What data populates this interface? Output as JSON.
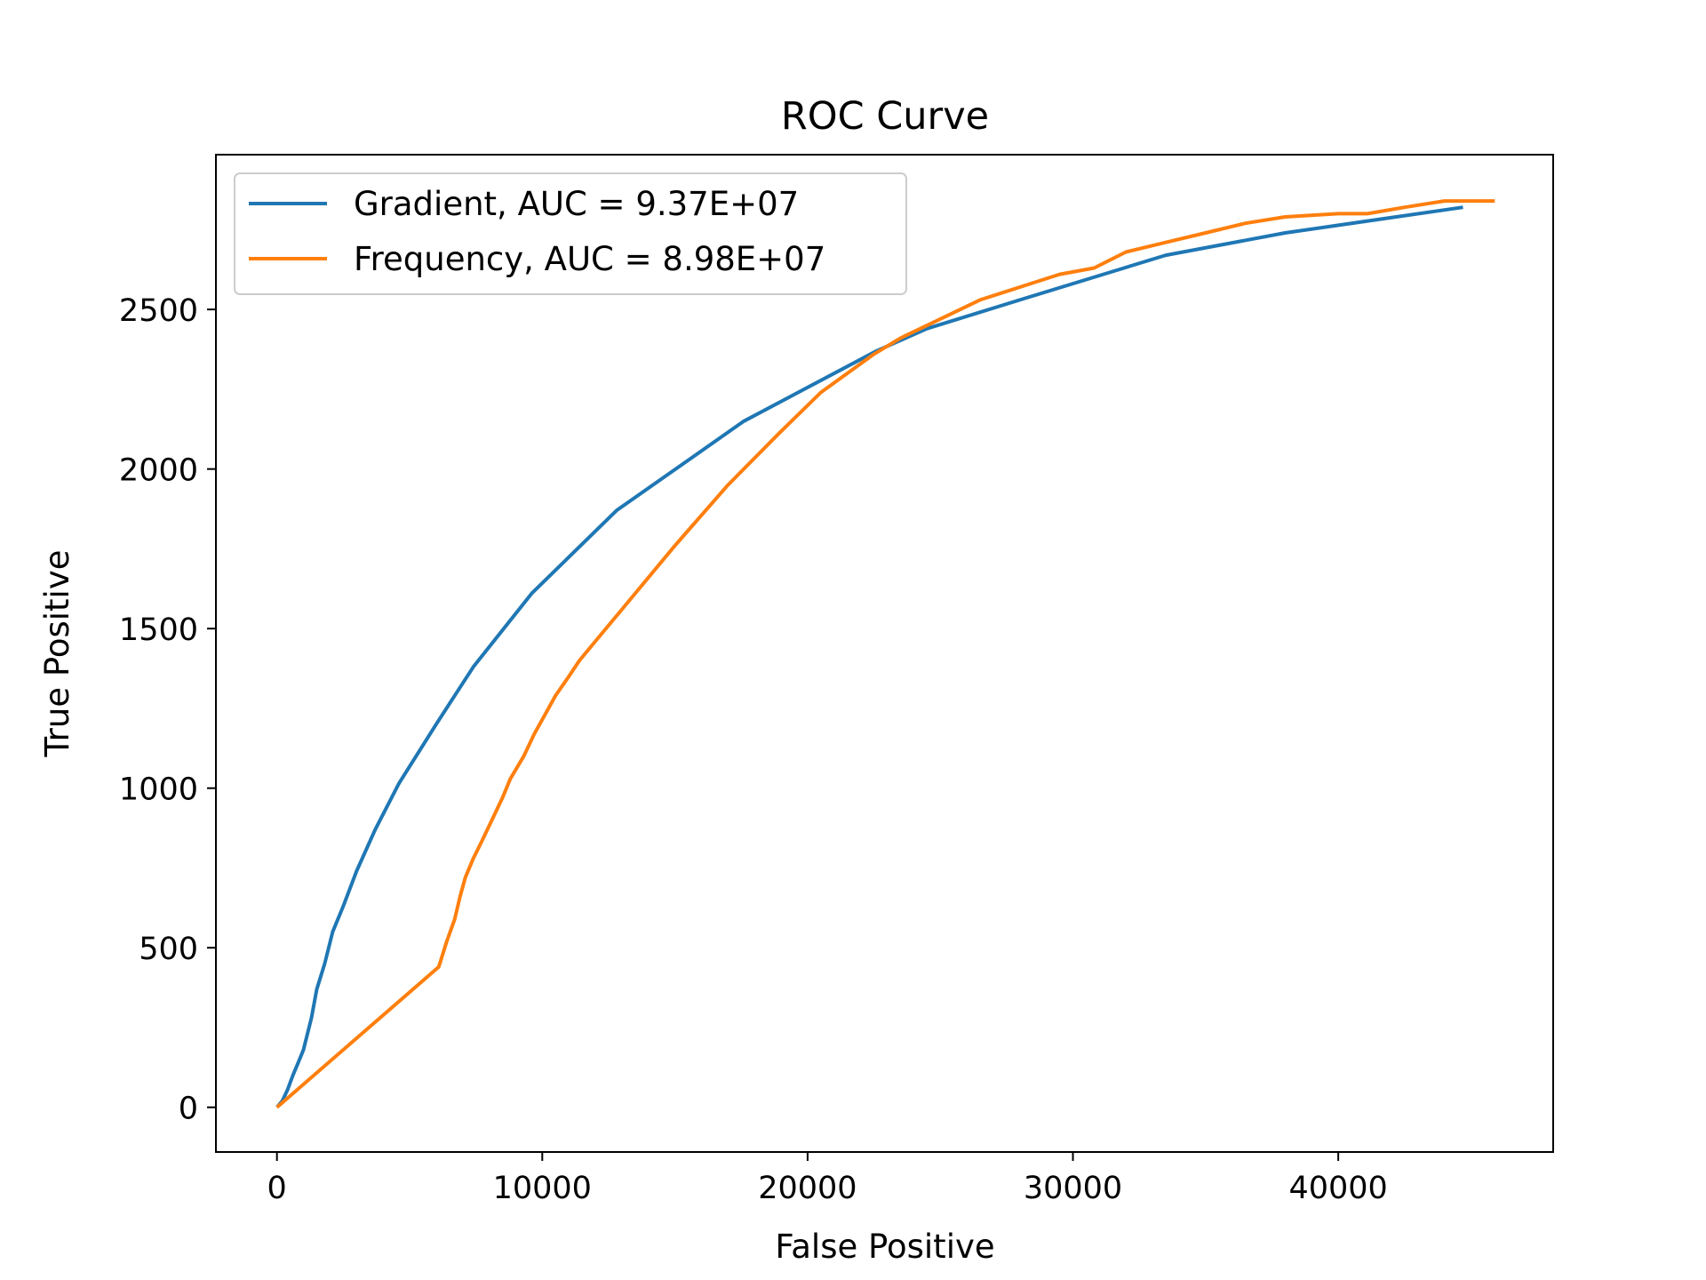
{
  "chart_data": {
    "type": "line",
    "title": "ROC Curve",
    "xlabel": "False Positive",
    "ylabel": "True Positive",
    "xlim": [
      -2300,
      48100
    ],
    "ylim": [
      -140,
      2985
    ],
    "xticks": [
      0,
      10000,
      20000,
      30000,
      40000
    ],
    "yticks": [
      0,
      500,
      1000,
      1500,
      2000,
      2500
    ],
    "grid": false,
    "legend_position": "upper-left",
    "series": [
      {
        "name": "Gradient, AUC = 9.37E+07",
        "color": "#1f77b4",
        "points": [
          [
            0,
            0
          ],
          [
            200,
            20
          ],
          [
            400,
            55
          ],
          [
            600,
            100
          ],
          [
            800,
            140
          ],
          [
            1000,
            180
          ],
          [
            1300,
            280
          ],
          [
            1500,
            370
          ],
          [
            1800,
            450
          ],
          [
            2100,
            550
          ],
          [
            2500,
            630
          ],
          [
            3000,
            740
          ],
          [
            3700,
            870
          ],
          [
            4600,
            1015
          ],
          [
            6000,
            1200
          ],
          [
            7400,
            1380
          ],
          [
            9600,
            1610
          ],
          [
            12800,
            1870
          ],
          [
            17600,
            2150
          ],
          [
            22600,
            2370
          ],
          [
            24500,
            2440
          ],
          [
            28000,
            2530
          ],
          [
            33500,
            2670
          ],
          [
            38000,
            2740
          ],
          [
            44700,
            2820
          ]
        ]
      },
      {
        "name": "Frequency, AUC = 8.98E+07",
        "color": "#ff7f0e",
        "points": [
          [
            0,
            0
          ],
          [
            6100,
            440
          ],
          [
            6400,
            520
          ],
          [
            6700,
            590
          ],
          [
            6900,
            660
          ],
          [
            7100,
            720
          ],
          [
            7400,
            780
          ],
          [
            7700,
            830
          ],
          [
            8100,
            900
          ],
          [
            8500,
            970
          ],
          [
            8800,
            1030
          ],
          [
            9300,
            1100
          ],
          [
            9700,
            1170
          ],
          [
            10100,
            1230
          ],
          [
            10500,
            1290
          ],
          [
            11000,
            1350
          ],
          [
            11400,
            1400
          ],
          [
            12000,
            1460
          ],
          [
            13000,
            1560
          ],
          [
            15000,
            1760
          ],
          [
            17000,
            1950
          ],
          [
            18900,
            2110
          ],
          [
            20500,
            2240
          ],
          [
            22500,
            2360
          ],
          [
            23500,
            2410
          ],
          [
            25000,
            2470
          ],
          [
            26500,
            2530
          ],
          [
            28000,
            2570
          ],
          [
            29500,
            2610
          ],
          [
            30800,
            2630
          ],
          [
            32000,
            2680
          ],
          [
            33500,
            2710
          ],
          [
            35000,
            2740
          ],
          [
            36500,
            2770
          ],
          [
            38000,
            2790
          ],
          [
            40000,
            2800
          ],
          [
            41100,
            2800
          ],
          [
            42500,
            2820
          ],
          [
            44000,
            2840
          ],
          [
            45900,
            2840
          ]
        ]
      }
    ]
  }
}
